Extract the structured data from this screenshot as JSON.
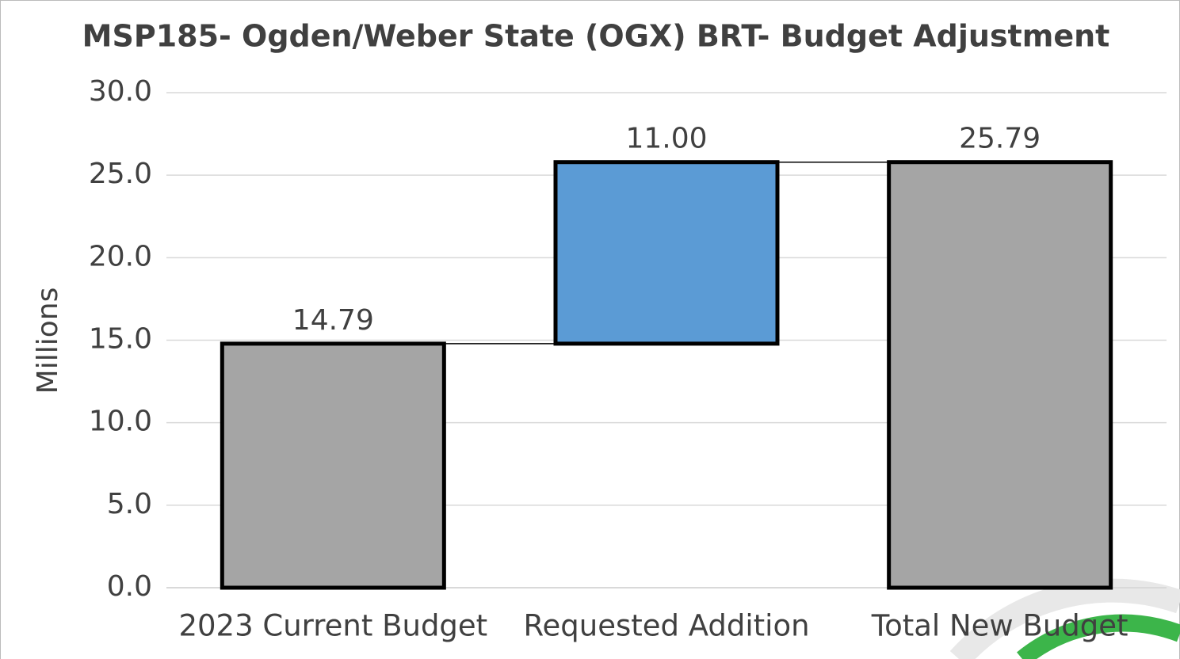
{
  "chart_data": {
    "type": "waterfall",
    "title": "MSP185- Ogden/Weber State (OGX) BRT- Budget Adjustment",
    "y_label": "Millions",
    "categories": [
      "2023 Current Budget",
      "Requested Addition",
      "Total New Budget"
    ],
    "values": [
      14.79,
      11.0,
      25.79
    ],
    "value_labels": [
      "14.79",
      "11.00",
      "25.79"
    ],
    "measure": [
      "total",
      "relative",
      "total"
    ],
    "colors": [
      "#a5a5a5",
      "#5b9bd5",
      "#a5a5a5"
    ],
    "ylim": [
      0,
      30
    ],
    "yticks": [
      {
        "value": 0,
        "label": "0.0"
      },
      {
        "value": 5,
        "label": "5.0"
      },
      {
        "value": 10,
        "label": "10.0"
      },
      {
        "value": 15,
        "label": "15.0"
      },
      {
        "value": 20,
        "label": "20.0"
      },
      {
        "value": 25,
        "label": "25.0"
      },
      {
        "value": 30,
        "label": "30.0"
      }
    ],
    "grid": true
  }
}
